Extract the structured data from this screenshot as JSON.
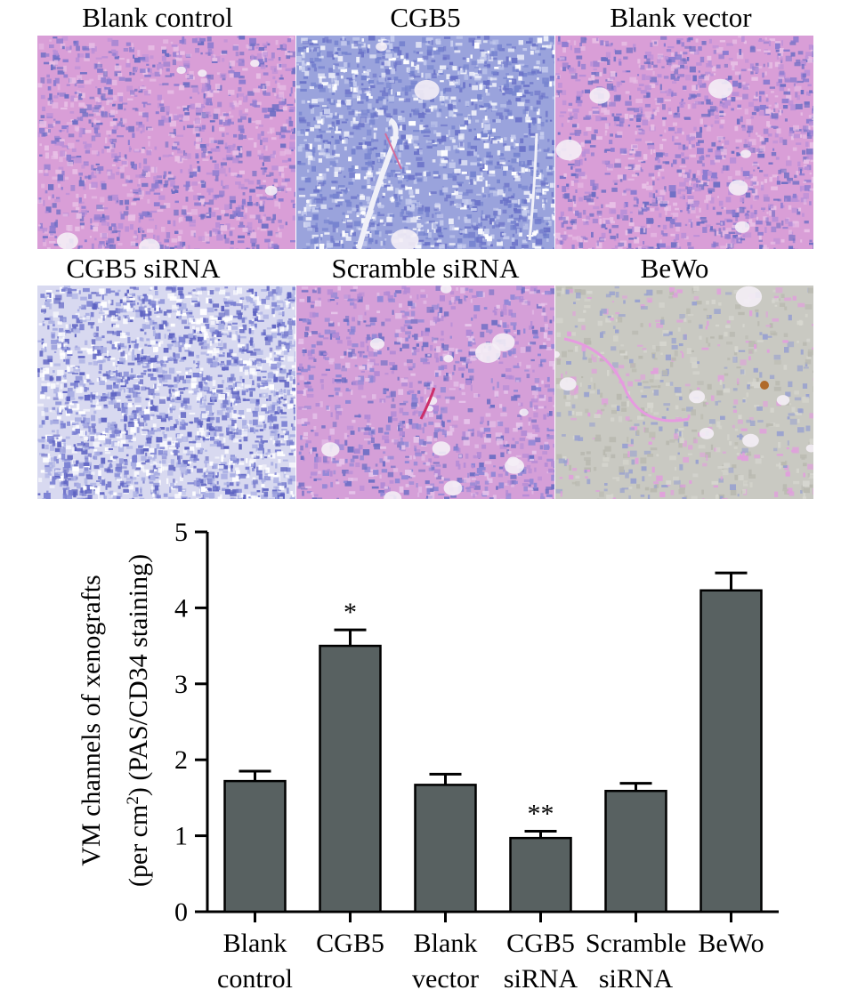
{
  "panels": [
    {
      "label": "Blank control",
      "style": "pink-dense"
    },
    {
      "label": "CGB5",
      "style": "blue-vessel"
    },
    {
      "label": "Blank vector",
      "style": "pink-dense"
    },
    {
      "label": "CGB5 siRNA",
      "style": "blue-sparse"
    },
    {
      "label": "Scramble siRNA",
      "style": "pink-holes"
    },
    {
      "label": "BeWo",
      "style": "gray"
    }
  ],
  "colors": {
    "bar": "#586161",
    "pink_bg": "#d99ed7",
    "blue_dot": "#6d6ec4",
    "gray_bg": "#c9c9c2"
  },
  "chart_data": {
    "type": "bar",
    "ylabel_line1": "VM channels of xenografts",
    "ylabel_line2_pre": "(per cm",
    "ylabel_line2_sup": "2",
    "ylabel_line2_post": ")  (PAS/CD34 staining)",
    "ylim": [
      0,
      5
    ],
    "yticks": [
      "0",
      "1",
      "2",
      "3",
      "4",
      "5"
    ],
    "categories": [
      [
        "Blank",
        "control"
      ],
      [
        "CGB5",
        ""
      ],
      [
        "Blank",
        "vector"
      ],
      [
        "CGB5",
        "siRNA"
      ],
      [
        "Scramble",
        "siRNA"
      ],
      [
        "BeWo",
        ""
      ]
    ],
    "values": [
      1.72,
      3.5,
      1.67,
      0.97,
      1.59,
      4.23
    ],
    "errors": [
      0.13,
      0.21,
      0.14,
      0.09,
      0.1,
      0.23
    ],
    "annotations": [
      "",
      "*",
      "",
      "**",
      "",
      ""
    ]
  }
}
